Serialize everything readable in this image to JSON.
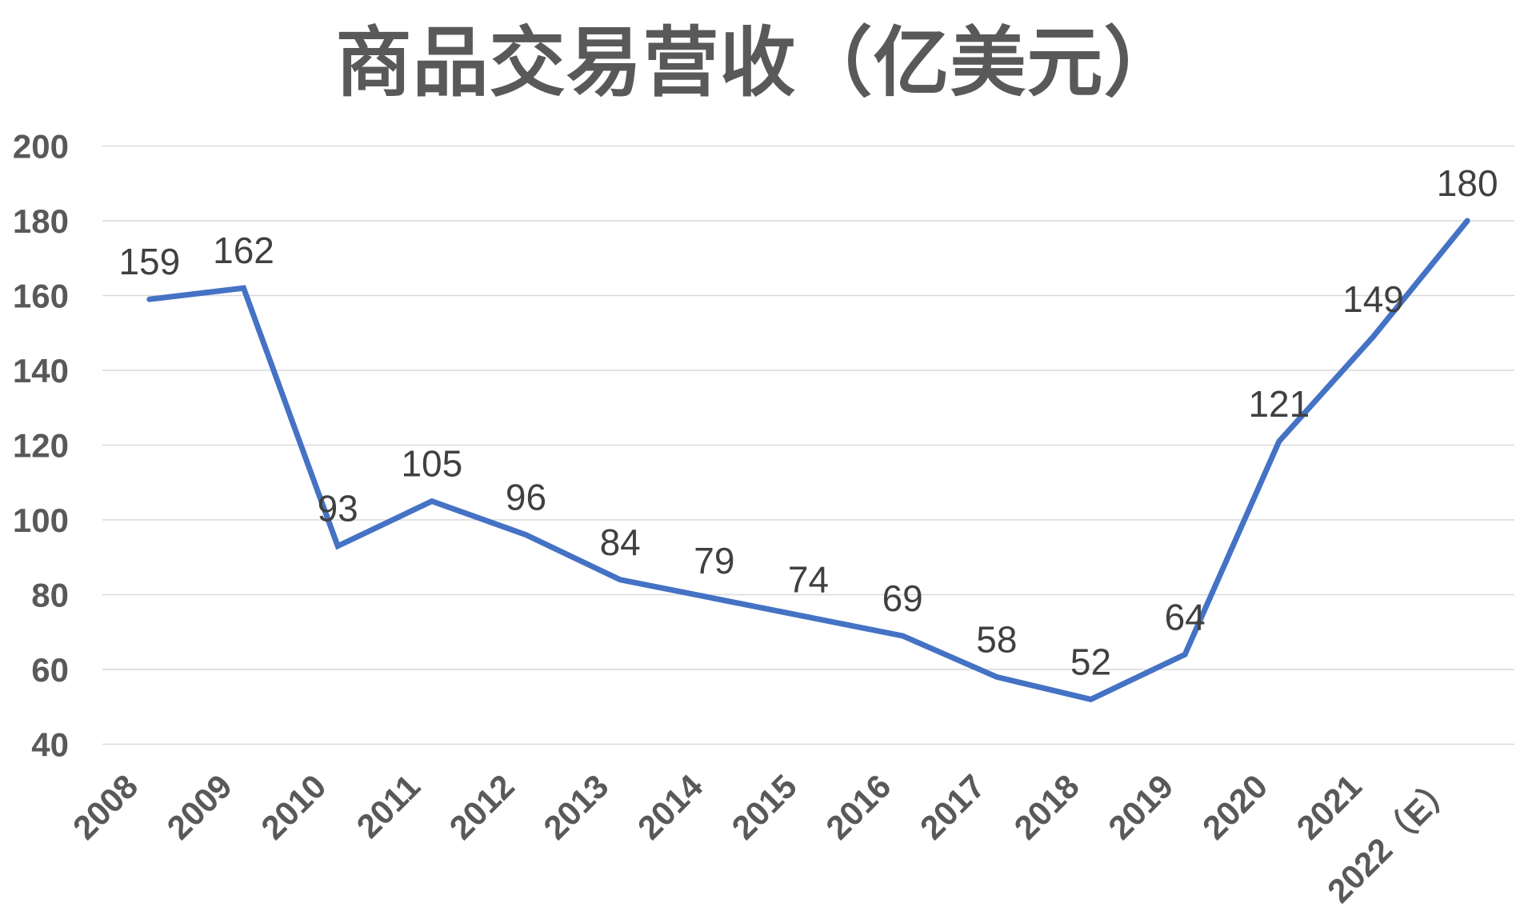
{
  "chart_data": {
    "type": "line",
    "title": "商品交易营收（亿美元）",
    "categories": [
      "2008",
      "2009",
      "2010",
      "2011",
      "2012",
      "2013",
      "2014",
      "2015",
      "2016",
      "2017",
      "2018",
      "2019",
      "2020",
      "2021",
      "2022（E）"
    ],
    "values": [
      159,
      162,
      93,
      105,
      96,
      84,
      79,
      74,
      69,
      58,
      52,
      64,
      121,
      149,
      180
    ],
    "xlabel": "",
    "ylabel": "",
    "ylim": [
      40,
      200
    ],
    "ytick_step": 20,
    "yticks": [
      200,
      180,
      160,
      140,
      120,
      100,
      80,
      60,
      40
    ],
    "grid": "horizontal",
    "legend": "none",
    "markers": "none",
    "data_label_position": "above",
    "x_label_rotation": -45,
    "colors": {
      "line": "#4472C4",
      "gridline": "#D9D9D9",
      "axis_text": "#595959",
      "data_label_text": "#404040",
      "title_text": "#595959",
      "background": "#FFFFFF"
    }
  }
}
